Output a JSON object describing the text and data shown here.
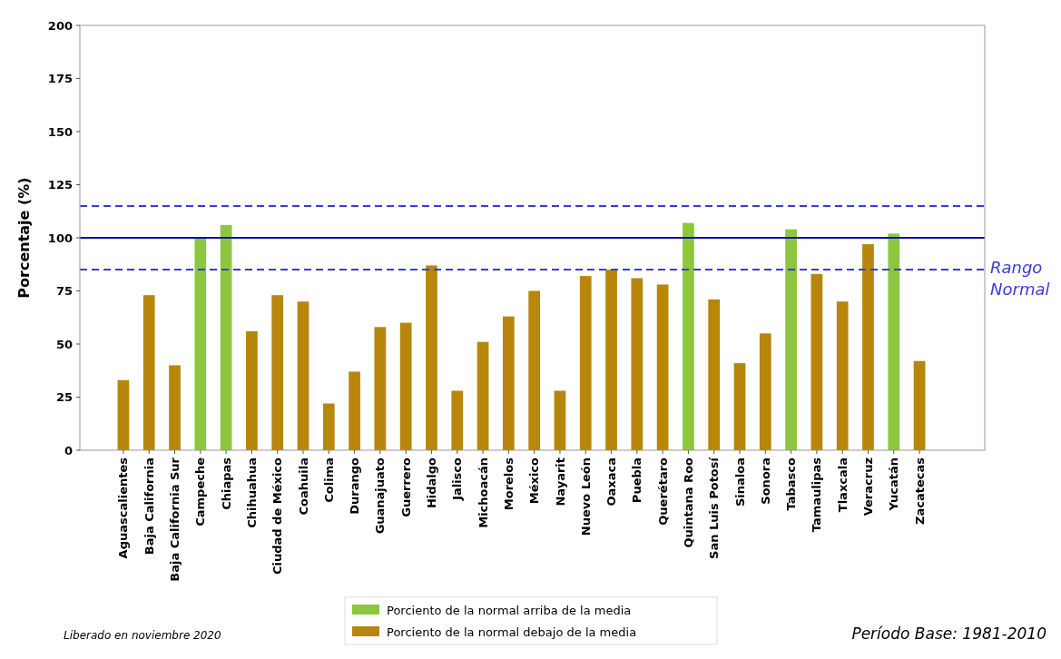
{
  "chart_data": {
    "type": "bar",
    "stacked": true,
    "ylabel": "Porcentaje (%)",
    "categories": [
      "Aguascalientes",
      "Baja California",
      "Baja California Sur",
      "Campeche",
      "Chiapas",
      "Chihuahua",
      "Ciudad de México",
      "Coahuila",
      "Colima",
      "Durango",
      "Guanajuato",
      "Guerrero",
      "Hidalgo",
      "Jalisco",
      "Michoacán",
      "Morelos",
      "México",
      "Nayarit",
      "Nuevo León",
      "Oaxaca",
      "Puebla",
      "Querétaro",
      "Quintana Roo",
      "San Luis Potosí",
      "Sinaloa",
      "Sonora",
      "Tabasco",
      "Tamaulipas",
      "Tlaxcala",
      "Veracruz",
      "Yucatán",
      "Zacatecas"
    ],
    "series": [
      {
        "name": "Porciento de la normal arriba de la media",
        "color": "#8dc63f",
        "values": [
          null,
          null,
          null,
          100,
          106,
          null,
          null,
          null,
          null,
          null,
          null,
          null,
          null,
          null,
          null,
          null,
          null,
          null,
          null,
          null,
          null,
          null,
          107,
          null,
          null,
          null,
          104,
          null,
          null,
          null,
          102,
          null
        ]
      },
      {
        "name": "Porciento de la normal debajo de la media",
        "color": "#b8860b",
        "values": [
          33,
          73,
          40,
          null,
          null,
          56,
          73,
          70,
          22,
          37,
          58,
          60,
          87,
          28,
          51,
          63,
          75,
          28,
          82,
          85,
          81,
          78,
          null,
          71,
          41,
          55,
          null,
          83,
          70,
          97,
          null,
          42
        ]
      }
    ],
    "ylim": [
      0,
      200
    ],
    "yticks": [
      0,
      25,
      50,
      75,
      100,
      125,
      150,
      175,
      200
    ],
    "grid": false,
    "legend": "bottom",
    "ref_lines": [
      {
        "axis": "y",
        "value": 115,
        "color": "#3a3ae0",
        "line_style": "dashed"
      },
      {
        "axis": "y",
        "value": 100,
        "color": "#1010b0",
        "line_style": "solid"
      },
      {
        "axis": "y",
        "value": 85,
        "color": "#3a3ae0",
        "line_style": "dashed",
        "label": "Rango Normal"
      }
    ],
    "annotations": [
      "Liberado en noviembre 2020",
      "Período Base: 1981-2010"
    ]
  }
}
